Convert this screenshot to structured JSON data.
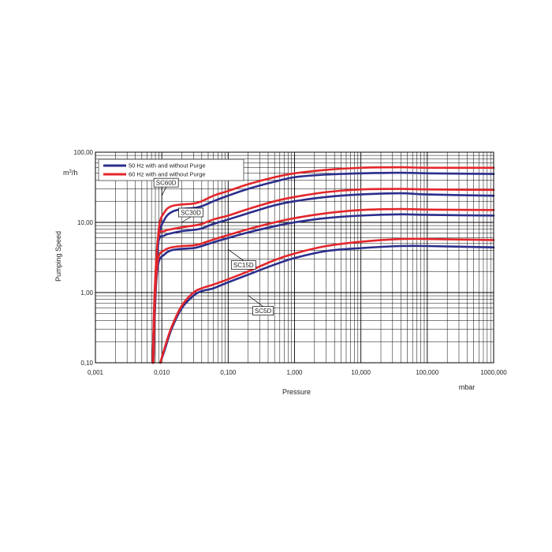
{
  "chart_data": {
    "type": "line",
    "xscale": "log",
    "yscale": "log",
    "xlim": [
      0.001,
      1000
    ],
    "ylim": [
      0.1,
      100
    ],
    "grid": true,
    "legend_position": "top-left",
    "xlabel": "Pressure",
    "xunit": "mbar",
    "ylabel": "Pumping Speed",
    "yunit": "m3/h",
    "x_tick_labels": [
      "0,001",
      "0,010",
      "0,100",
      "1,000",
      "10,000",
      "100,000",
      "1000,000"
    ],
    "y_tick_labels": [
      "0,10",
      "1,00",
      "10,00",
      "100,00"
    ],
    "legend": [
      {
        "label": "50 Hz with and without Purge",
        "color": "#2b2e8c"
      },
      {
        "label": "60 Hz with and without Purge",
        "color": "#e3262b"
      }
    ],
    "series": [
      {
        "name": "SC60D",
        "frequency": "50 Hz",
        "color": "#2b2e8c",
        "x": [
          0.0075,
          0.008,
          0.009,
          0.011,
          0.014,
          0.02,
          0.03,
          0.04,
          0.06,
          0.1,
          0.2,
          0.5,
          1,
          3,
          10,
          40,
          100,
          1000
        ],
        "y": [
          0.1,
          0.8,
          6,
          11,
          14,
          15.5,
          16,
          17,
          20,
          24,
          30,
          38,
          44,
          48,
          50,
          51,
          50,
          49
        ]
      },
      {
        "name": "SC60D",
        "frequency": "60 Hz",
        "color": "#e3262b",
        "x": [
          0.0075,
          0.008,
          0.009,
          0.011,
          0.014,
          0.02,
          0.03,
          0.04,
          0.06,
          0.1,
          0.2,
          0.5,
          1,
          3,
          10,
          40,
          100,
          1000
        ],
        "y": [
          0.1,
          1,
          8,
          14,
          17,
          18,
          18.5,
          20,
          24,
          28,
          35,
          44,
          50,
          56,
          60,
          61,
          60,
          60
        ]
      },
      {
        "name": "SC30D",
        "frequency": "50 Hz",
        "color": "#2b2e8c",
        "x": [
          0.0073,
          0.0078,
          0.0088,
          0.011,
          0.014,
          0.02,
          0.03,
          0.04,
          0.06,
          0.1,
          0.2,
          0.5,
          1,
          3,
          10,
          40,
          100,
          1000
        ],
        "y": [
          0.1,
          0.8,
          5,
          6.5,
          7,
          7.5,
          7.8,
          8.2,
          9.5,
          11,
          13.5,
          17.5,
          20,
          23,
          25,
          26,
          25,
          24
        ]
      },
      {
        "name": "SC30D",
        "frequency": "60 Hz",
        "color": "#e3262b",
        "x": [
          0.0073,
          0.0078,
          0.0088,
          0.011,
          0.014,
          0.02,
          0.03,
          0.04,
          0.06,
          0.1,
          0.2,
          0.5,
          1,
          3,
          10,
          40,
          100,
          1000
        ],
        "y": [
          0.1,
          1,
          6,
          7.5,
          8,
          8.5,
          9,
          9.5,
          11,
          12.5,
          15.5,
          20,
          23,
          27,
          29.5,
          30,
          29.5,
          29
        ]
      },
      {
        "name": "SC15D",
        "frequency": "50 Hz",
        "color": "#2b2e8c",
        "x": [
          0.0073,
          0.0078,
          0.0088,
          0.011,
          0.014,
          0.02,
          0.03,
          0.04,
          0.06,
          0.1,
          0.2,
          0.5,
          1,
          3,
          10,
          40,
          100,
          1000
        ],
        "y": [
          0.1,
          0.6,
          2.5,
          3.5,
          4,
          4.2,
          4.3,
          4.6,
          5.2,
          6,
          7.2,
          8.8,
          10,
          11.5,
          12.5,
          13,
          12.8,
          12.5
        ]
      },
      {
        "name": "SC15D",
        "frequency": "60 Hz",
        "color": "#e3262b",
        "x": [
          0.0073,
          0.0078,
          0.0088,
          0.011,
          0.014,
          0.02,
          0.03,
          0.04,
          0.06,
          0.1,
          0.2,
          0.5,
          1,
          3,
          10,
          40,
          100,
          1000
        ],
        "y": [
          0.1,
          0.7,
          3,
          4,
          4.4,
          4.6,
          4.7,
          5,
          5.7,
          6.6,
          8,
          10,
          11.5,
          13.5,
          15,
          15.5,
          15.2,
          15
        ]
      },
      {
        "name": "SC5D",
        "frequency": "50 Hz",
        "color": "#2b2e8c",
        "x": [
          0.0095,
          0.011,
          0.014,
          0.02,
          0.03,
          0.04,
          0.06,
          0.1,
          0.2,
          0.5,
          1,
          3,
          10,
          40,
          100,
          1000
        ],
        "y": [
          0.1,
          0.15,
          0.3,
          0.6,
          0.9,
          1.05,
          1.15,
          1.4,
          1.8,
          2.5,
          3.1,
          3.9,
          4.3,
          4.6,
          4.6,
          4.4
        ]
      },
      {
        "name": "SC5D",
        "frequency": "60 Hz",
        "color": "#e3262b",
        "x": [
          0.0095,
          0.011,
          0.014,
          0.02,
          0.03,
          0.04,
          0.06,
          0.1,
          0.2,
          0.5,
          1,
          3,
          10,
          40,
          100,
          1000
        ],
        "y": [
          0.1,
          0.16,
          0.32,
          0.65,
          1,
          1.15,
          1.3,
          1.55,
          2,
          2.9,
          3.6,
          4.6,
          5.3,
          5.8,
          5.8,
          5.6
        ]
      }
    ],
    "annotations": [
      {
        "text": "SC60D",
        "x": 0.01,
        "y": 24
      },
      {
        "text": "SC30D",
        "x": 0.02,
        "y": 10
      },
      {
        "text": "SC15D",
        "x": 0.1,
        "y": 4.1
      },
      {
        "text": "SC5D",
        "x": 0.2,
        "y": 0.91
      }
    ]
  }
}
